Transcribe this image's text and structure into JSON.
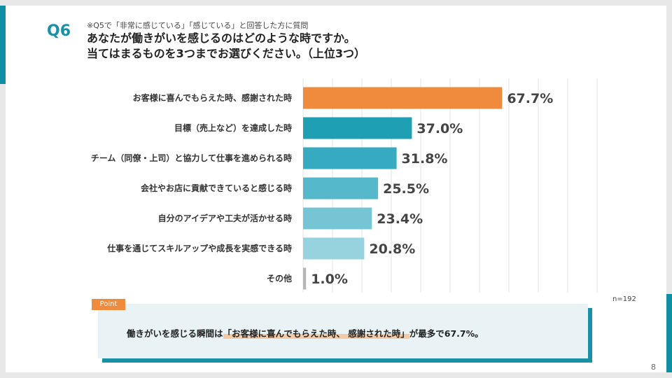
{
  "slide": {
    "question_label": "Q6",
    "note": "※Q5で「非常に感じている」「感じている」と回答した方に質問",
    "title_line1": "あなたが働きがいを感じるのはどのような時ですか。",
    "title_line2": "当てはまるものを3つまでお選びください。（上位3つ）",
    "sample_size": "n=192",
    "page_number": "8"
  },
  "point": {
    "tag": "Point",
    "text_before": "働きがいを感じる瞬間は",
    "text_highlight": "「お客様に喜んでもらえた時、 感謝された時」",
    "text_after": "が最多で67.7%。"
  },
  "chart_data": {
    "type": "bar",
    "orientation": "horizontal",
    "categories": [
      "お客様に喜んでもらえた時、感謝された時",
      "目標（売上など）を達成した時",
      "チーム（同僚・上司）と協力して仕事を進められる時",
      "会社やお店に貢献できていると感じる時",
      "自分のアイデアや工夫が活かせる時",
      "仕事を通じてスキルアップや成長を実感できる時",
      "その他"
    ],
    "values": [
      67.7,
      37.0,
      31.8,
      25.5,
      23.4,
      20.8,
      1.0
    ],
    "value_labels": [
      "67.7%",
      "37.0%",
      "31.8%",
      "25.5%",
      "23.4%",
      "20.8%",
      "1.0%"
    ],
    "unit": "%",
    "xlim": [
      0,
      100
    ],
    "grid": true,
    "colors": [
      "#f08a3c",
      "#1f9fb3",
      "#35aac0",
      "#55b8cb",
      "#75c5d5",
      "#96d3df",
      "#b5b5b5"
    ]
  }
}
